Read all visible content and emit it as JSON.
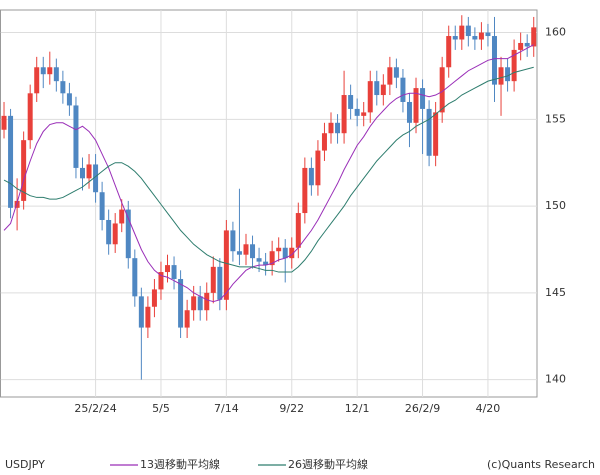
{
  "chart_data": {
    "type": "candlestick",
    "title": "USDJPY",
    "copyright": "(c)Quants Research",
    "categories": [
      null,
      null,
      null,
      null,
      null,
      null,
      null,
      null,
      null,
      null,
      null,
      null,
      null,
      null,
      "25/2/24",
      null,
      null,
      null,
      null,
      null,
      null,
      null,
      null,
      null,
      "5/5",
      null,
      null,
      null,
      null,
      null,
      null,
      null,
      null,
      null,
      "7/14",
      null,
      null,
      null,
      null,
      null,
      null,
      null,
      null,
      null,
      "9/22",
      null,
      null,
      null,
      null,
      null,
      null,
      null,
      null,
      null,
      "12/1",
      null,
      null,
      null,
      null,
      null,
      null,
      null,
      null,
      null,
      "26/2/9",
      null,
      null,
      null,
      null,
      null,
      null,
      null,
      null,
      null,
      "4/20",
      null,
      null,
      null,
      null,
      null,
      null,
      null
    ],
    "open": [
      154.4,
      155.2,
      149.9,
      150.3,
      153.8,
      156.5,
      158.0,
      157.6,
      158.0,
      157.2,
      156.5,
      155.8,
      152.2,
      151.6,
      152.4,
      150.8,
      149.2,
      147.8,
      149.0,
      149.8,
      147.0,
      144.8,
      143.0,
      144.2,
      145.2,
      146.2,
      146.6,
      145.8,
      143.0,
      144.0,
      144.8,
      144.0,
      145.0,
      146.5,
      144.6,
      148.6,
      147.4,
      147.2,
      147.8,
      147.0,
      146.8,
      146.6,
      147.4,
      147.6,
      147.0,
      147.6,
      149.6,
      152.2,
      151.2,
      153.2,
      154.2,
      154.8,
      154.2,
      156.4,
      155.6,
      155.2,
      155.4,
      157.2,
      156.4,
      157.0,
      158.0,
      157.4,
      156.0,
      154.8,
      156.8,
      155.6,
      152.9,
      155.4,
      158.0,
      159.8,
      159.6,
      160.4,
      159.8,
      159.6,
      160.0,
      159.8,
      157.0,
      158.0,
      157.2,
      159.0,
      159.4,
      159.2
    ],
    "high": [
      156.0,
      155.6,
      151.6,
      154.3,
      157.0,
      158.6,
      158.6,
      158.9,
      158.5,
      157.8,
      157.1,
      156.3,
      152.8,
      153.0,
      153.0,
      151.4,
      149.8,
      149.6,
      150.4,
      150.3,
      147.5,
      145.3,
      144.8,
      145.8,
      146.8,
      147.2,
      147.1,
      146.3,
      144.6,
      145.4,
      145.4,
      145.6,
      147.1,
      147.0,
      149.2,
      149.1,
      151.0,
      148.4,
      148.3,
      147.6,
      147.3,
      148.0,
      148.2,
      148.1,
      148.2,
      150.2,
      152.8,
      152.8,
      153.8,
      154.8,
      155.4,
      155.3,
      157.8,
      157.0,
      156.2,
      156.0,
      157.8,
      157.8,
      157.6,
      158.6,
      158.5,
      157.9,
      156.5,
      157.4,
      157.3,
      156.1,
      156.0,
      158.6,
      160.4,
      160.4,
      161.0,
      160.9,
      160.3,
      160.6,
      160.5,
      160.9,
      158.6,
      158.5,
      159.6,
      160.0,
      159.9,
      160.9
    ],
    "low": [
      153.9,
      149.3,
      148.6,
      149.8,
      153.3,
      156.0,
      156.8,
      157.0,
      156.6,
      155.9,
      155.2,
      151.6,
      150.9,
      151.0,
      150.2,
      148.6,
      147.2,
      147.3,
      148.5,
      146.4,
      144.2,
      140.0,
      142.4,
      143.6,
      144.6,
      145.6,
      145.2,
      142.4,
      142.4,
      143.4,
      143.4,
      143.4,
      144.4,
      144.0,
      144.0,
      146.8,
      146.6,
      146.6,
      146.4,
      146.2,
      146.0,
      146.0,
      146.8,
      145.6,
      146.4,
      147.0,
      149.0,
      150.6,
      150.6,
      152.6,
      153.6,
      153.6,
      153.6,
      155.0,
      154.6,
      154.6,
      154.8,
      155.8,
      155.8,
      156.4,
      156.8,
      155.4,
      153.4,
      154.2,
      153.0,
      152.3,
      152.3,
      154.8,
      157.4,
      159.0,
      159.0,
      159.2,
      159.0,
      159.0,
      159.2,
      156.0,
      155.2,
      156.6,
      156.6,
      158.4,
      158.6,
      158.6
    ],
    "close": [
      155.2,
      149.9,
      150.3,
      153.8,
      156.5,
      158.0,
      157.6,
      158.0,
      157.2,
      156.5,
      155.8,
      152.2,
      151.6,
      152.4,
      150.8,
      149.2,
      147.8,
      149.0,
      149.8,
      147.0,
      144.8,
      143.0,
      144.2,
      145.2,
      146.2,
      146.6,
      145.8,
      143.0,
      144.0,
      144.8,
      144.0,
      145.0,
      146.5,
      144.6,
      148.6,
      147.4,
      147.2,
      147.8,
      147.0,
      146.8,
      146.6,
      147.4,
      147.6,
      147.0,
      147.6,
      149.6,
      152.2,
      151.2,
      153.2,
      154.2,
      154.8,
      154.2,
      156.4,
      155.6,
      155.2,
      155.4,
      157.2,
      156.4,
      157.0,
      158.0,
      157.4,
      156.0,
      154.8,
      156.8,
      155.6,
      152.9,
      155.4,
      158.0,
      159.8,
      159.6,
      160.4,
      159.8,
      159.6,
      160.0,
      159.8,
      157.0,
      158.0,
      157.2,
      159.0,
      159.4,
      159.2,
      160.3
    ],
    "up_color": "#e8403a",
    "down_color": "#4f87c2",
    "series": [
      {
        "name": "13週移動平均線",
        "color": "#9a2fb8",
        "values": [
          148.6,
          149.0,
          150.2,
          151.5,
          152.6,
          153.6,
          154.3,
          154.7,
          154.8,
          154.8,
          154.6,
          154.4,
          154.6,
          154.3,
          153.8,
          153.0,
          152.2,
          151.2,
          150.2,
          149.3,
          148.4,
          147.5,
          146.8,
          146.3,
          146.0,
          145.9,
          145.7,
          145.5,
          145.3,
          145.0,
          144.8,
          144.6,
          144.5,
          144.6,
          145.0,
          145.5,
          145.9,
          146.3,
          146.5,
          146.6,
          146.6,
          146.7,
          146.9,
          147.0,
          147.2,
          147.6,
          148.1,
          148.6,
          149.2,
          149.9,
          150.6,
          151.3,
          152.1,
          152.8,
          153.5,
          154.0,
          154.6,
          155.1,
          155.5,
          155.9,
          156.2,
          156.4,
          156.5,
          156.5,
          156.4,
          156.3,
          156.4,
          156.6,
          156.9,
          157.2,
          157.5,
          157.8,
          158.0,
          158.2,
          158.4,
          158.5,
          158.5,
          158.5,
          158.7,
          158.9,
          159.1,
          159.3
        ]
      },
      {
        "name": "26週移動平均線",
        "color": "#2e7d6e",
        "values": [
          151.5,
          151.3,
          151.0,
          150.8,
          150.6,
          150.5,
          150.5,
          150.4,
          150.4,
          150.5,
          150.7,
          150.9,
          151.1,
          151.4,
          151.7,
          152.0,
          152.3,
          152.5,
          152.5,
          152.3,
          152.0,
          151.6,
          151.1,
          150.6,
          150.1,
          149.6,
          149.1,
          148.6,
          148.2,
          147.8,
          147.5,
          147.2,
          147.0,
          146.8,
          146.7,
          146.6,
          146.5,
          146.5,
          146.5,
          146.4,
          146.3,
          146.3,
          146.2,
          146.2,
          146.2,
          146.5,
          146.9,
          147.4,
          148.0,
          148.5,
          149.0,
          149.5,
          150.0,
          150.6,
          151.1,
          151.6,
          152.1,
          152.6,
          153.0,
          153.4,
          153.8,
          154.1,
          154.3,
          154.6,
          154.8,
          155.0,
          155.3,
          155.6,
          155.9,
          156.1,
          156.4,
          156.6,
          156.8,
          157.0,
          157.2,
          157.3,
          157.4,
          157.5,
          157.7,
          157.8,
          157.9,
          158.0
        ]
      }
    ],
    "ylim": [
      139,
      161.3
    ],
    "yticks": [
      140,
      145,
      150,
      155,
      160
    ],
    "grid": true
  }
}
